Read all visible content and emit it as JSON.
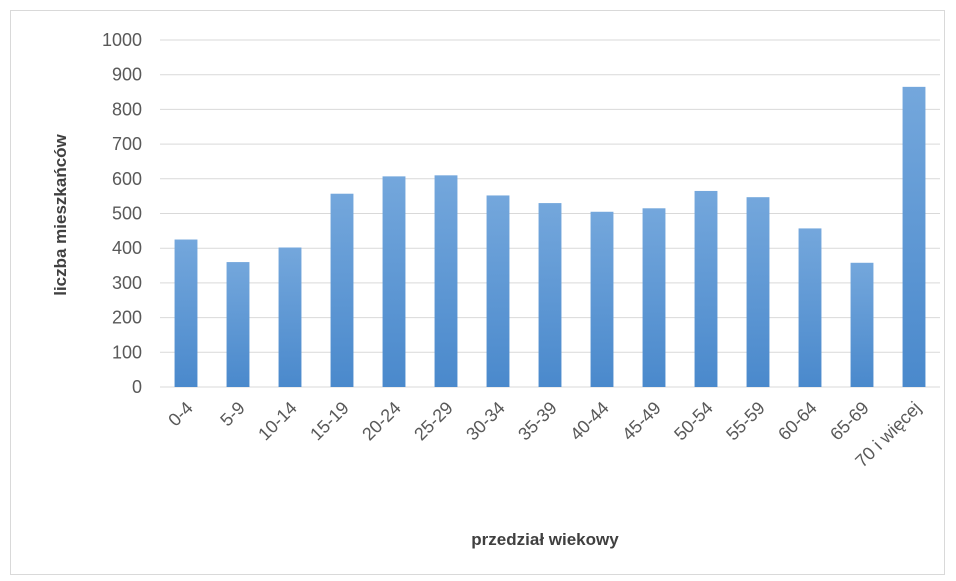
{
  "chart_data": {
    "type": "bar",
    "title": "",
    "xlabel": "przedział wiekowy",
    "ylabel": "liczba mieszkańców",
    "categories": [
      "0-4",
      "5-9",
      "10-14",
      "15-19",
      "20-24",
      "25-29",
      "30-34",
      "35-39",
      "40-44",
      "45-49",
      "50-54",
      "55-59",
      "60-64",
      "65-69",
      "70 i więcej"
    ],
    "values": [
      425,
      360,
      402,
      557,
      607,
      610,
      552,
      530,
      505,
      515,
      565,
      547,
      457,
      358,
      865
    ],
    "ylim": [
      0,
      1000
    ],
    "yticks": [
      0,
      100,
      200,
      300,
      400,
      500,
      600,
      700,
      800,
      900,
      1000
    ],
    "grid": true,
    "legend": "none",
    "bar_color_top": "#74A7DC",
    "bar_color_bottom": "#4A89CC",
    "grid_color": "#d9d9d9"
  }
}
